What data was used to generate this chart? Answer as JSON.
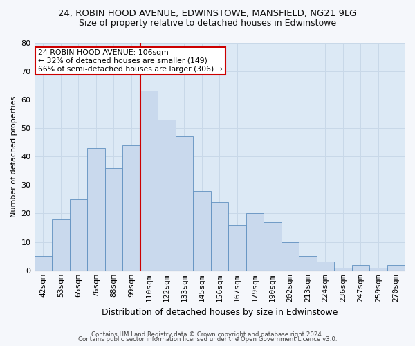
{
  "title_line1": "24, ROBIN HOOD AVENUE, EDWINSTOWE, MANSFIELD, NG21 9LG",
  "title_line2": "Size of property relative to detached houses in Edwinstowe",
  "xlabel": "Distribution of detached houses by size in Edwinstowe",
  "ylabel": "Number of detached properties",
  "categories": [
    "42sqm",
    "53sqm",
    "65sqm",
    "76sqm",
    "88sqm",
    "99sqm",
    "110sqm",
    "122sqm",
    "133sqm",
    "145sqm",
    "156sqm",
    "167sqm",
    "179sqm",
    "190sqm",
    "202sqm",
    "213sqm",
    "224sqm",
    "236sqm",
    "247sqm",
    "259sqm",
    "270sqm"
  ],
  "values": [
    5,
    18,
    25,
    43,
    36,
    44,
    63,
    53,
    47,
    28,
    24,
    16,
    20,
    17,
    10,
    5,
    3,
    1,
    2,
    1,
    2
  ],
  "bar_color": "#c9d9ed",
  "bar_edge_color": "#6090c0",
  "vline_color": "#cc0000",
  "grid_color": "#c8d8e8",
  "background_color": "#dce9f5",
  "fig_background": "#f5f7fb",
  "annotation_text_line1": "24 ROBIN HOOD AVENUE: 106sqm",
  "annotation_text_line2": "← 32% of detached houses are smaller (149)",
  "annotation_text_line3": "66% of semi-detached houses are larger (306) →",
  "annotation_box_facecolor": "#ffffff",
  "annotation_box_edgecolor": "#cc0000",
  "footer_line1": "Contains HM Land Registry data © Crown copyright and database right 2024.",
  "footer_line2": "Contains public sector information licensed under the Open Government Licence v3.0.",
  "ylim": [
    0,
    80
  ],
  "yticks": [
    0,
    10,
    20,
    30,
    40,
    50,
    60,
    70,
    80
  ],
  "vline_x": 5.5,
  "title1_fontsize": 9.5,
  "title2_fontsize": 9,
  "xlabel_fontsize": 9,
  "ylabel_fontsize": 8,
  "tick_fontsize": 8,
  "annotation_fontsize": 7.8,
  "footer_fontsize": 6.2
}
